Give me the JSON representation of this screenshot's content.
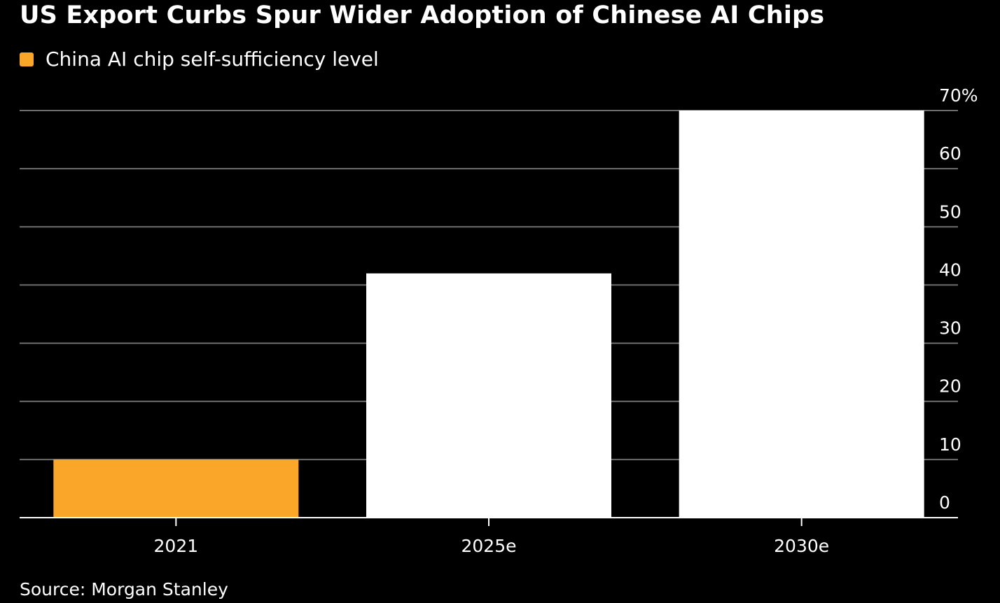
{
  "chart_data": {
    "type": "bar",
    "title": "US Export Curbs Spur Wider Adoption of Chinese AI Chips",
    "categories": [
      "2021",
      "2025e",
      "2030e"
    ],
    "series": [
      {
        "name": "China AI chip self-sufficiency level",
        "values": [
          10,
          42,
          70
        ]
      }
    ],
    "bar_colors": [
      "#f9a629",
      "#ffffff",
      "#ffffff"
    ],
    "ylim": [
      0,
      70
    ],
    "yticks": [
      0,
      10,
      20,
      30,
      40,
      50,
      60,
      70
    ],
    "ytick_labels": [
      "0",
      "10",
      "20",
      "30",
      "40",
      "50",
      "60",
      "70%"
    ],
    "y_axis_side": "right",
    "grid": true,
    "legend_position": "top-left",
    "source": "Source: Morgan Stanley"
  },
  "colors": {
    "background": "#000000",
    "text": "#ffffff",
    "gridline": "#6e6e6e",
    "highlight": "#f9a629"
  }
}
